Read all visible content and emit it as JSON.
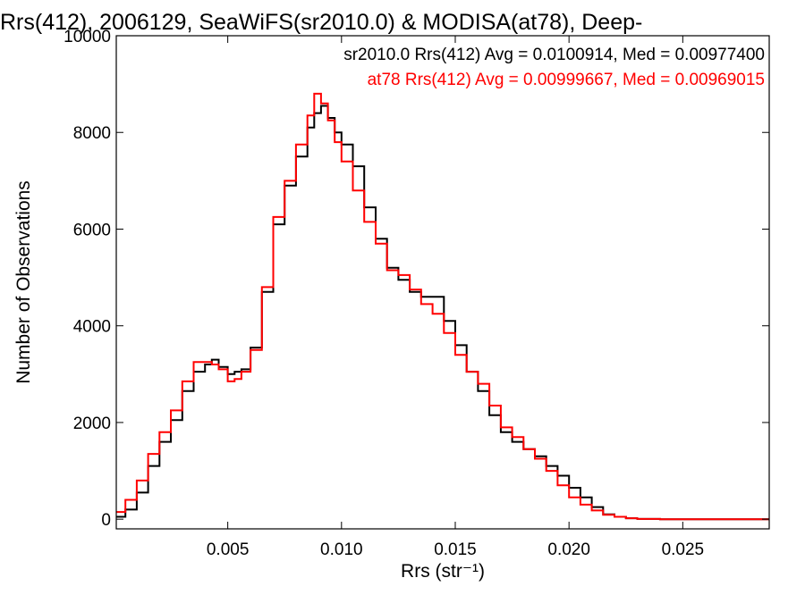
{
  "chart_data": {
    "type": "line",
    "step": true,
    "title": "Rrs(412), 2006129, SeaWiFS(sr2010.0) & MODISA(at78), Deep-",
    "xlabel": "Rrs (str⁻¹)",
    "ylabel": "Number of Observations",
    "xlim": [
      0.0001,
      0.0288
    ],
    "ylim": [
      -200,
      10000
    ],
    "x_ticks": [
      0.005,
      0.01,
      0.015,
      0.02,
      0.025
    ],
    "x_tick_labels": [
      "0.005",
      "0.010",
      "0.015",
      "0.020",
      "0.025"
    ],
    "y_ticks": [
      0,
      2000,
      4000,
      6000,
      8000,
      10000
    ],
    "y_tick_labels": [
      "0",
      "2000",
      "4000",
      "6000",
      "8000",
      "10000"
    ],
    "grid": false,
    "legend_placement": "top-right",
    "series": [
      {
        "name": "sr2010.0 Rrs(412) Avg = 0.0100914, Med = 0.00977400",
        "color": "#000000",
        "x": [
          0.0001,
          0.0005,
          0.001,
          0.0015,
          0.002,
          0.0025,
          0.003,
          0.0035,
          0.004,
          0.0043,
          0.0046,
          0.005,
          0.0053,
          0.0056,
          0.006,
          0.0065,
          0.007,
          0.0075,
          0.008,
          0.0085,
          0.0088,
          0.0091,
          0.0094,
          0.0097,
          0.01,
          0.0105,
          0.011,
          0.0115,
          0.012,
          0.0125,
          0.013,
          0.0135,
          0.014,
          0.0145,
          0.015,
          0.0155,
          0.016,
          0.0165,
          0.017,
          0.0175,
          0.018,
          0.0185,
          0.019,
          0.0195,
          0.02,
          0.0205,
          0.021,
          0.0215,
          0.022,
          0.0225,
          0.023,
          0.024,
          0.025,
          0.0288
        ],
        "y": [
          50,
          200,
          550,
          1100,
          1600,
          2050,
          2650,
          3050,
          3200,
          3300,
          3150,
          3000,
          3050,
          3100,
          3550,
          4700,
          6100,
          6900,
          7500,
          8100,
          8400,
          8550,
          8300,
          8000,
          7750,
          7300,
          6450,
          5800,
          5200,
          4950,
          4700,
          4600,
          4600,
          4100,
          3600,
          3050,
          2650,
          2150,
          1800,
          1600,
          1450,
          1300,
          1100,
          900,
          650,
          450,
          250,
          100,
          50,
          20,
          5,
          0,
          0,
          0
        ]
      },
      {
        "name": "at78 Rrs(412) Avg = 0.00999667, Med = 0.00969015",
        "color": "#ff0000",
        "x": [
          0.0001,
          0.0005,
          0.001,
          0.0015,
          0.002,
          0.0025,
          0.003,
          0.0035,
          0.004,
          0.0043,
          0.0046,
          0.005,
          0.0053,
          0.0056,
          0.006,
          0.0065,
          0.007,
          0.0075,
          0.008,
          0.0085,
          0.0088,
          0.0091,
          0.0094,
          0.0097,
          0.01,
          0.0105,
          0.011,
          0.0115,
          0.012,
          0.0125,
          0.013,
          0.0135,
          0.014,
          0.0145,
          0.015,
          0.0155,
          0.016,
          0.0165,
          0.017,
          0.0175,
          0.018,
          0.0185,
          0.019,
          0.0195,
          0.02,
          0.0205,
          0.021,
          0.0215,
          0.022,
          0.0225,
          0.023,
          0.024,
          0.025,
          0.0288
        ],
        "y": [
          150,
          400,
          800,
          1350,
          1800,
          2250,
          2850,
          3250,
          3250,
          3200,
          3100,
          2850,
          2900,
          3050,
          3500,
          4800,
          6250,
          7000,
          7750,
          8350,
          8800,
          8600,
          8250,
          7800,
          7400,
          6800,
          6150,
          5700,
          5150,
          5050,
          4750,
          4450,
          4250,
          3850,
          3400,
          3050,
          2800,
          2350,
          1900,
          1700,
          1450,
          1250,
          1000,
          700,
          450,
          300,
          180,
          90,
          50,
          20,
          5,
          0,
          0,
          0
        ]
      }
    ]
  }
}
